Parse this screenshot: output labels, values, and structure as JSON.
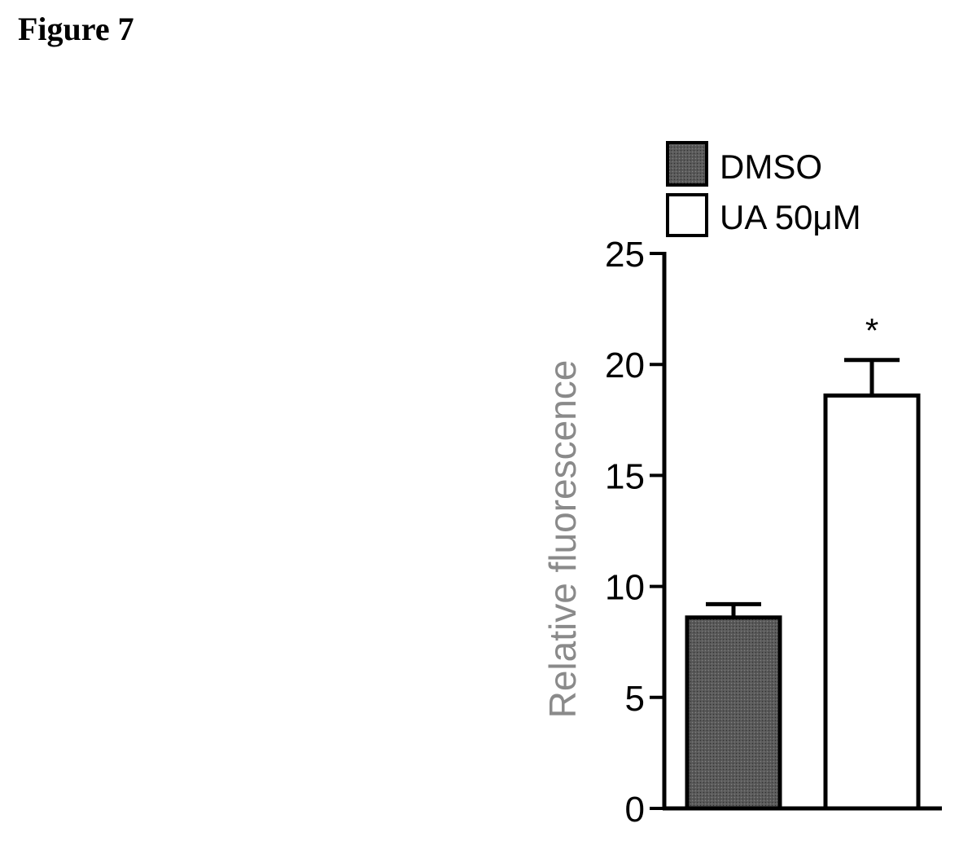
{
  "figure_label": "Figure 7",
  "colors": {
    "dmso_fill": "#5a5a5a",
    "ua_fill": "#ffffff",
    "ylabel_color": "#8a8a8a",
    "stroke": "#000000"
  },
  "chart_data": {
    "type": "bar",
    "title": "",
    "xlabel": "",
    "ylabel": "Relative fluorescence",
    "ylim": [
      0,
      25
    ],
    "yticks": [
      0,
      5,
      10,
      15,
      20,
      25
    ],
    "ytick_labels": [
      "0",
      "5",
      "10",
      "15",
      "20",
      "25"
    ],
    "grid": false,
    "legend_position": "top",
    "series": [
      {
        "name": "DMSO",
        "value": 8.6,
        "error": 0.6,
        "fill": "#5a5a5a",
        "annotation": ""
      },
      {
        "name": "UA 50μM",
        "value": 18.6,
        "error": 1.6,
        "fill": "#ffffff",
        "annotation": "*"
      }
    ]
  }
}
